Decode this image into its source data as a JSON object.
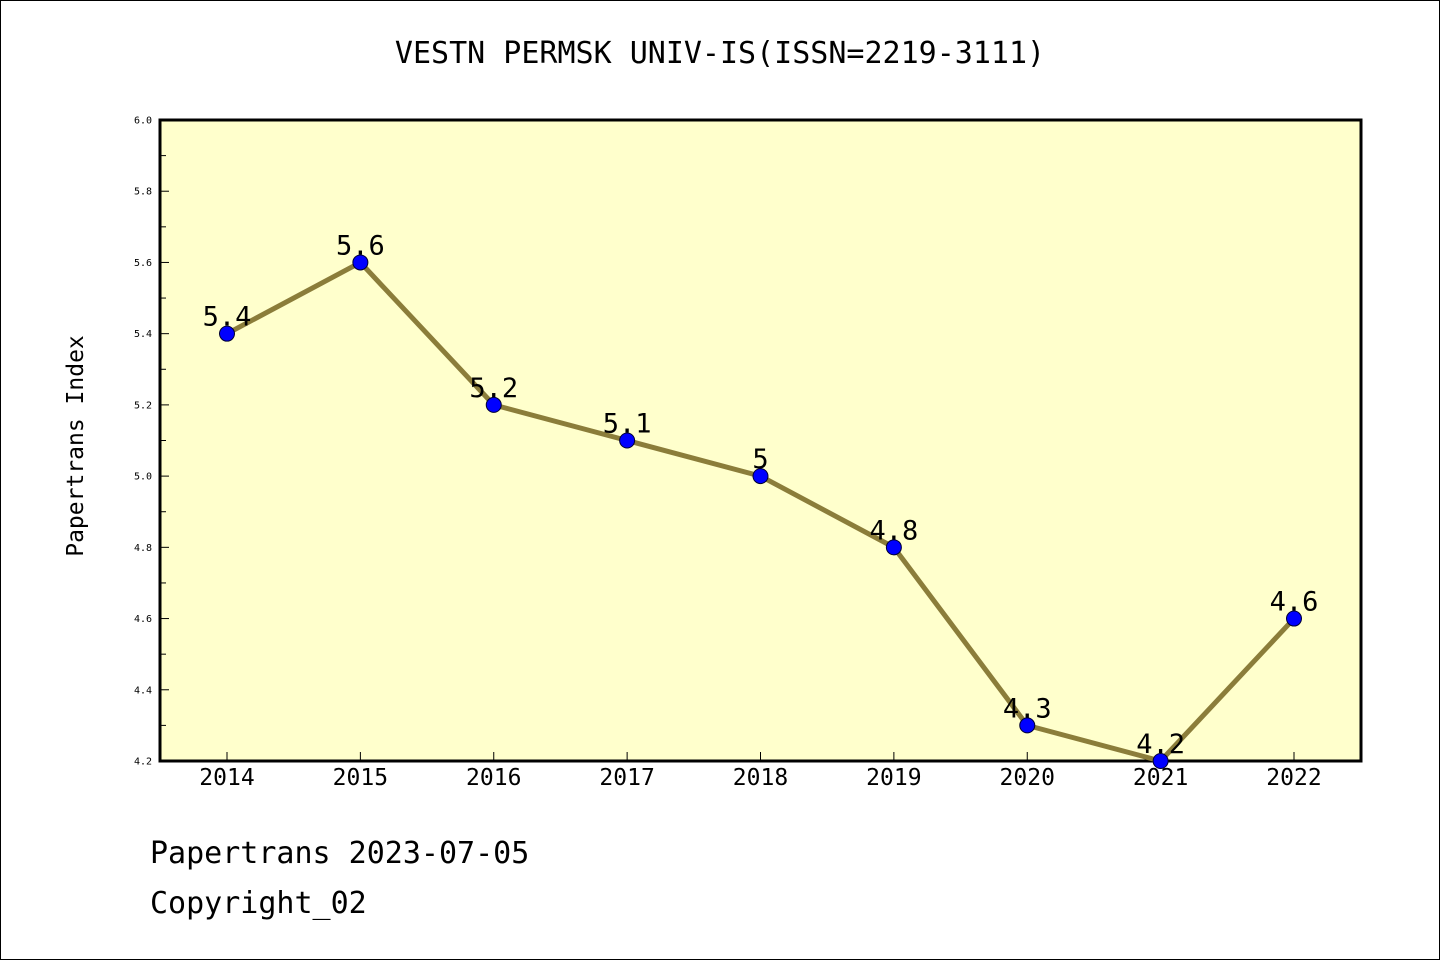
{
  "chart_data": {
    "type": "line",
    "title": "VESTN PERMSK UNIV-IS(ISSN=2219-3111)",
    "xlabel": "",
    "ylabel": "Papertrans Index",
    "categories": [
      "2014",
      "2015",
      "2016",
      "2017",
      "2018",
      "2019",
      "2020",
      "2021",
      "2022"
    ],
    "series": [
      {
        "values": [
          5.4,
          5.6,
          5.2,
          5.1,
          5.0,
          4.8,
          4.3,
          4.2,
          4.6
        ],
        "labels": [
          "5.4",
          "5.6",
          "5.2",
          "5.1",
          "5",
          "4.8",
          "4.3",
          "4.2",
          "4.6"
        ]
      }
    ],
    "ylim": [
      4.2,
      6.0
    ],
    "yticks": [
      "4.2",
      "4.4",
      "4.6",
      "4.8",
      "5.0",
      "5.2",
      "5.4",
      "5.6",
      "5.8",
      "6.0"
    ],
    "grid": false,
    "colors": {
      "plot_background": "#ffffcc",
      "line": "#8b7d3a",
      "marker": "#0000ff"
    }
  },
  "footer": {
    "date_line": "Papertrans 2023-07-05",
    "copyright": "Copyright_02"
  }
}
